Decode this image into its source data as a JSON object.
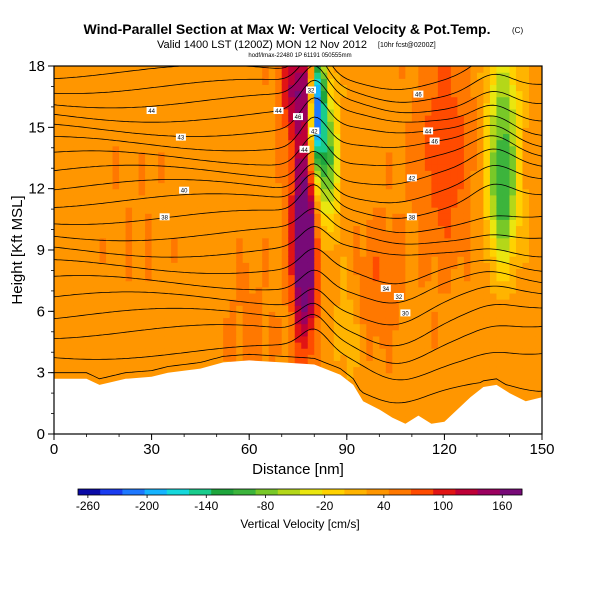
{
  "chart_data": {
    "type": "heatmap",
    "title": "Wind-Parallel Section at Max W: Vertical Velocity & Pot.Temp.",
    "title_mark": "(C)",
    "subtitle": "Valid 1400 LST (1200Z) MON 12 Nov 2012",
    "subtitle_note": "[10hr fcst@0200Z]",
    "small_note": "hodf/lmax-22480 1P 61191 050555mm",
    "xlabel": "Distance [nm]",
    "ylabel": "Height [Kft MSL]",
    "xlim": [
      0,
      150
    ],
    "ylim": [
      0,
      18
    ],
    "x_ticks": [
      0,
      30,
      60,
      90,
      120,
      150
    ],
    "y_ticks": [
      0,
      3,
      6,
      9,
      12,
      15,
      18
    ],
    "colorbar": {
      "label": "Vertical Velocity [cm/s]",
      "tick_values": [
        -260,
        -200,
        -140,
        -80,
        -20,
        40,
        100,
        160
      ],
      "range": [
        -270,
        180
      ],
      "colors": [
        "#0a0aa6",
        "#1a3cf0",
        "#1e78ff",
        "#16b4ff",
        "#16d8dc",
        "#19cc8c",
        "#1ea53c",
        "#3cb43c",
        "#78c828",
        "#b4d719",
        "#eae60f",
        "#ffd200",
        "#ffb400",
        "#ff9600",
        "#ff7800",
        "#ff4b00",
        "#e11414",
        "#be0037",
        "#9b005f",
        "#780a78"
      ]
    },
    "background_w": 35,
    "updraft_cores": [
      {
        "x": 77,
        "z": 8.5,
        "w": 160,
        "sx": 2.2,
        "sz": 2.8
      },
      {
        "x": 77,
        "z": 12.5,
        "w": 90,
        "sx": 3.5,
        "sz": 4.5
      },
      {
        "x": 75,
        "z": 17,
        "w": 95,
        "sx": 4,
        "sz": 1.5
      },
      {
        "x": 120,
        "z": 14,
        "w": 60,
        "sx": 6,
        "sz": 4
      },
      {
        "x": 90,
        "z": 5,
        "w": -15,
        "sx": 3,
        "sz": 2
      },
      {
        "x": 60,
        "z": 5,
        "w": 25,
        "sx": 6,
        "sz": 3
      },
      {
        "x": 25,
        "z": 10,
        "w": 20,
        "sx": 8,
        "sz": 3
      },
      {
        "x": 100,
        "z": 7.5,
        "w": 40,
        "sx": 5,
        "sz": 2.5
      }
    ],
    "downdraft_cores": [
      {
        "x": 81,
        "z": 16,
        "w": -260,
        "sx": 1.6,
        "sz": 2.2
      },
      {
        "x": 84,
        "z": 13.5,
        "w": -120,
        "sx": 2.5,
        "sz": 2.5
      },
      {
        "x": 138,
        "z": 14.5,
        "w": -110,
        "sx": 3.5,
        "sz": 3.5
      },
      {
        "x": 138,
        "z": 11,
        "w": -60,
        "sx": 3,
        "sz": 2
      }
    ],
    "terrain_profile_kft": [
      [
        0,
        2.7
      ],
      [
        10,
        2.7
      ],
      [
        14,
        2.4
      ],
      [
        22,
        2.7
      ],
      [
        30,
        2.8
      ],
      [
        35,
        3.0
      ],
      [
        45,
        3.2
      ],
      [
        52,
        3.5
      ],
      [
        60,
        3.6
      ],
      [
        70,
        3.5
      ],
      [
        80,
        3.4
      ],
      [
        88,
        2.9
      ],
      [
        92,
        2.4
      ],
      [
        95,
        1.6
      ],
      [
        100,
        1.2
      ],
      [
        104,
        0.8
      ],
      [
        108,
        0.5
      ],
      [
        112,
        0.9
      ],
      [
        116,
        0.5
      ],
      [
        120,
        0.6
      ],
      [
        124,
        1.2
      ],
      [
        128,
        1.8
      ],
      [
        132,
        2.3
      ],
      [
        136,
        2.4
      ],
      [
        140,
        2.0
      ],
      [
        145,
        1.6
      ],
      [
        150,
        1.8
      ]
    ],
    "contour_labels": [
      {
        "text": "44",
        "x": 30,
        "z": 15.8
      },
      {
        "text": "44",
        "x": 69,
        "z": 15.8
      },
      {
        "text": "44",
        "x": 115,
        "z": 14.8
      },
      {
        "text": "43",
        "x": 39,
        "z": 14.5
      },
      {
        "text": "40",
        "x": 40,
        "z": 11.9
      },
      {
        "text": "38",
        "x": 34,
        "z": 10.6
      },
      {
        "text": "46",
        "x": 75,
        "z": 15.5
      },
      {
        "text": "42",
        "x": 80,
        "z": 14.8
      },
      {
        "text": "44",
        "x": 77,
        "z": 13.9
      },
      {
        "text": "46",
        "x": 112,
        "z": 16.6
      },
      {
        "text": "46",
        "x": 117,
        "z": 14.3
      },
      {
        "text": "42",
        "x": 110,
        "z": 12.5
      },
      {
        "text": "38",
        "x": 110,
        "z": 10.6
      },
      {
        "text": "34",
        "x": 102,
        "z": 7.1
      },
      {
        "text": "32",
        "x": 106,
        "z": 6.7
      },
      {
        "text": "30",
        "x": 108,
        "z": 5.9
      },
      {
        "text": "32",
        "x": 79,
        "z": 16.8
      }
    ],
    "theta_lines_kft": [
      2.4,
      4.0,
      5.0,
      5.8,
      6.6,
      7.4,
      8.2,
      9.0,
      9.8,
      10.6,
      11.4,
      12.1,
      12.8,
      13.5,
      14.2,
      14.9,
      15.6,
      16.3,
      17.0,
      17.7
    ],
    "grid": false,
    "legend_position": "bottom"
  }
}
